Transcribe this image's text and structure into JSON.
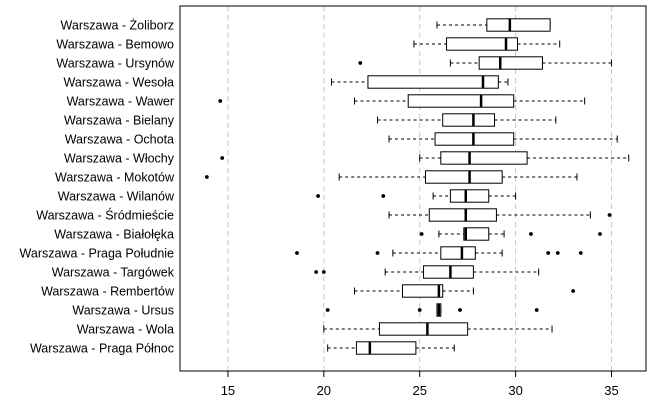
{
  "chart_data": {
    "type": "boxplot",
    "orientation": "horizontal",
    "xlim": [
      12.5,
      36.8
    ],
    "x_ticks": [
      15,
      20,
      25,
      30,
      35
    ],
    "x_tick_labels": [
      "15",
      "20",
      "25",
      "30",
      "35"
    ],
    "grid": "vertical dashed lines at ticks",
    "categories": [
      "Warszawa - Żoliborz",
      "Warszawa - Bemowo",
      "Warszawa - Ursynów",
      "Warszawa - Wesoła",
      "Warszawa - Wawer",
      "Warszawa - Bielany",
      "Warszawa - Ochota",
      "Warszawa - Włochy",
      "Warszawa - Mokotów",
      "Warszawa - Wilanów",
      "Warszawa - Śródmieście",
      "Warszawa - Białołęka",
      "Warszawa - Praga Południe",
      "Warszawa - Targówek",
      "Warszawa - Rembertów",
      "Warszawa - Ursus",
      "Warszawa - Wola",
      "Warszawa - Praga Północ"
    ],
    "boxes": [
      {
        "whisker_low": 25.9,
        "q1": 28.5,
        "median": 29.7,
        "q3": 31.8,
        "whisker_high": 31.8,
        "outliers": []
      },
      {
        "whisker_low": 24.7,
        "q1": 26.4,
        "median": 29.5,
        "q3": 30.1,
        "whisker_high": 32.3,
        "outliers": []
      },
      {
        "whisker_low": 26.6,
        "q1": 28.1,
        "median": 29.2,
        "q3": 31.4,
        "whisker_high": 35.0,
        "outliers": [
          21.9
        ]
      },
      {
        "whisker_low": 20.4,
        "q1": 22.3,
        "median": 28.3,
        "q3": 29.1,
        "whisker_high": 29.6,
        "outliers": []
      },
      {
        "whisker_low": 21.6,
        "q1": 24.4,
        "median": 28.2,
        "q3": 29.9,
        "whisker_high": 33.6,
        "outliers": [
          14.6
        ]
      },
      {
        "whisker_low": 22.8,
        "q1": 26.2,
        "median": 27.8,
        "q3": 28.9,
        "whisker_high": 32.1,
        "outliers": []
      },
      {
        "whisker_low": 23.4,
        "q1": 25.8,
        "median": 27.8,
        "q3": 29.9,
        "whisker_high": 35.3,
        "outliers": []
      },
      {
        "whisker_low": 25.0,
        "q1": 26.1,
        "median": 27.6,
        "q3": 30.6,
        "whisker_high": 35.9,
        "outliers": [
          14.7
        ]
      },
      {
        "whisker_low": 20.8,
        "q1": 25.3,
        "median": 27.6,
        "q3": 29.3,
        "whisker_high": 33.2,
        "outliers": [
          13.9
        ]
      },
      {
        "whisker_low": 25.7,
        "q1": 26.6,
        "median": 27.4,
        "q3": 28.6,
        "whisker_high": 30.0,
        "outliers": [
          19.7,
          23.1
        ]
      },
      {
        "whisker_low": 23.4,
        "q1": 25.5,
        "median": 27.4,
        "q3": 29.0,
        "whisker_high": 33.9,
        "outliers": [
          34.9
        ]
      },
      {
        "whisker_low": 26.0,
        "q1": 27.3,
        "median": 27.4,
        "q3": 28.6,
        "whisker_high": 29.4,
        "outliers": [
          25.1,
          30.8,
          34.4
        ]
      },
      {
        "whisker_low": 23.6,
        "q1": 26.1,
        "median": 27.2,
        "q3": 27.9,
        "whisker_high": 29.3,
        "outliers": [
          18.6,
          22.8,
          31.7,
          32.2,
          33.4
        ]
      },
      {
        "whisker_low": 23.2,
        "q1": 25.2,
        "median": 26.6,
        "q3": 27.8,
        "whisker_high": 31.2,
        "outliers": [
          19.6,
          20.0
        ]
      },
      {
        "whisker_low": 21.6,
        "q1": 24.1,
        "median": 26.0,
        "q3": 26.2,
        "whisker_high": 27.8,
        "outliers": [
          33.0
        ]
      },
      {
        "whisker_low": 25.9,
        "q1": 25.9,
        "median": 26.0,
        "q3": 26.1,
        "whisker_high": 26.1,
        "outliers": [
          20.2,
          25.0,
          27.1,
          31.1
        ]
      },
      {
        "whisker_low": 20.0,
        "q1": 22.9,
        "median": 25.4,
        "q3": 27.5,
        "whisker_high": 31.9,
        "outliers": []
      },
      {
        "whisker_low": 20.2,
        "q1": 21.7,
        "median": 22.4,
        "q3": 24.8,
        "whisker_high": 26.8,
        "outliers": []
      }
    ]
  }
}
